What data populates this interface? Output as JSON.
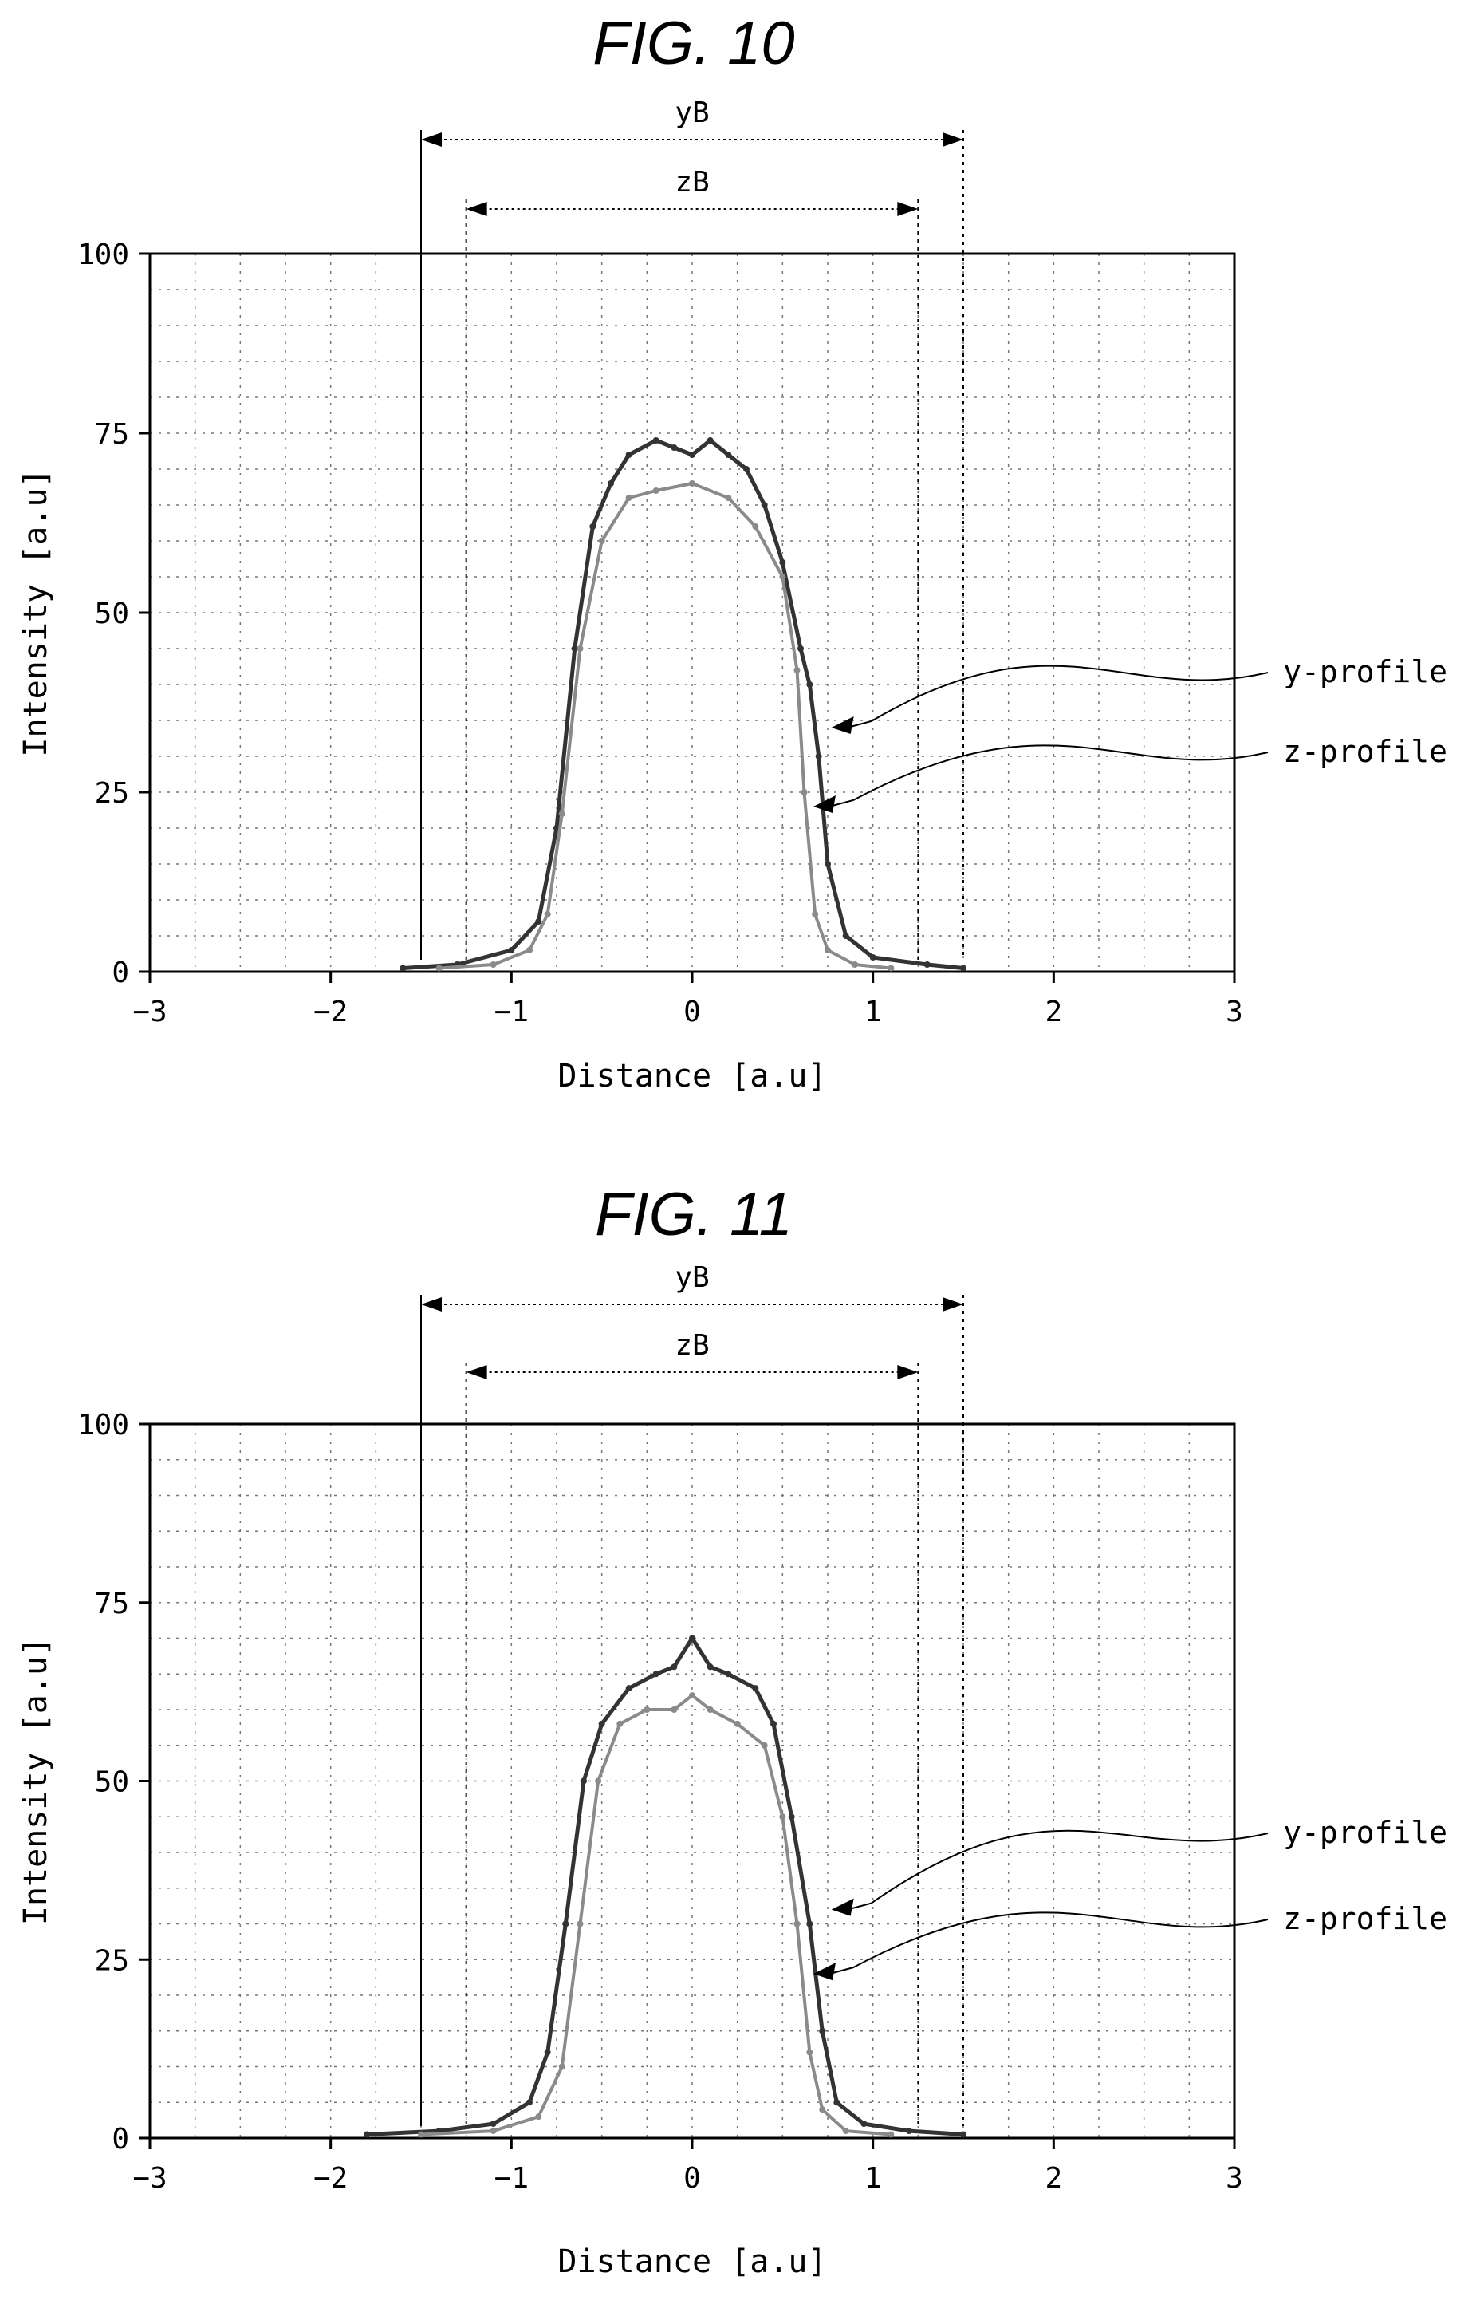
{
  "figures": [
    {
      "title": "FIG. 10",
      "dimensions": {
        "yB_label": "yB",
        "yB_range": [
          -1.5,
          1.5
        ],
        "zB_label": "zB",
        "zB_range": [
          -1.25,
          1.25
        ]
      },
      "annotations": [
        {
          "text": "y-profile",
          "points_to": [
            0.7,
            34
          ]
        },
        {
          "text": "z-profile",
          "points_to": [
            0.6,
            23
          ]
        }
      ]
    },
    {
      "title": "FIG. 11",
      "dimensions": {
        "yB_label": "yB",
        "yB_range": [
          -1.5,
          1.5
        ],
        "zB_label": "zB",
        "zB_range": [
          -1.25,
          1.25
        ]
      },
      "annotations": [
        {
          "text": "y-profile",
          "points_to": [
            0.7,
            32
          ]
        },
        {
          "text": "z-profile",
          "points_to": [
            0.6,
            23
          ]
        }
      ]
    }
  ],
  "chart_data": [
    {
      "type": "line",
      "title": "FIG. 10",
      "xlabel": "Distance [a.u]",
      "ylabel": "Intensity [a.u]",
      "xlim": [
        -3,
        3
      ],
      "ylim": [
        0,
        100
      ],
      "xticks": [
        "-3",
        "-2",
        "-1",
        "0",
        "1",
        "2",
        "3"
      ],
      "yticks": [
        "0",
        "25",
        "50",
        "75",
        "100"
      ],
      "grid": true,
      "series": [
        {
          "name": "y-profile",
          "color": "#333333",
          "x": [
            -1.6,
            -1.3,
            -1.0,
            -0.85,
            -0.75,
            -0.65,
            -0.55,
            -0.45,
            -0.35,
            -0.2,
            -0.1,
            0.0,
            0.1,
            0.2,
            0.3,
            0.4,
            0.5,
            0.6,
            0.65,
            0.7,
            0.75,
            0.85,
            1.0,
            1.3,
            1.5
          ],
          "y": [
            0.5,
            1,
            3,
            7,
            20,
            45,
            62,
            68,
            72,
            74,
            73,
            72,
            74,
            72,
            70,
            65,
            57,
            45,
            40,
            30,
            15,
            5,
            2,
            1,
            0.5
          ]
        },
        {
          "name": "z-profile",
          "color": "#8a8a8a",
          "x": [
            -1.4,
            -1.1,
            -0.9,
            -0.8,
            -0.72,
            -0.62,
            -0.5,
            -0.35,
            -0.2,
            0.0,
            0.2,
            0.35,
            0.5,
            0.58,
            0.62,
            0.68,
            0.75,
            0.9,
            1.1
          ],
          "y": [
            0.5,
            1,
            3,
            8,
            22,
            45,
            60,
            66,
            67,
            68,
            66,
            62,
            55,
            42,
            25,
            8,
            3,
            1,
            0.5
          ]
        }
      ]
    },
    {
      "type": "line",
      "title": "FIG. 11",
      "xlabel": "Distance [a.u]",
      "ylabel": "Intensity [a.u]",
      "xlim": [
        -3,
        3
      ],
      "ylim": [
        0,
        100
      ],
      "xticks": [
        "-3",
        "-2",
        "-1",
        "0",
        "1",
        "2",
        "3"
      ],
      "yticks": [
        "0",
        "25",
        "50",
        "75",
        "100"
      ],
      "grid": true,
      "series": [
        {
          "name": "y-profile",
          "color": "#333333",
          "x": [
            -1.8,
            -1.4,
            -1.1,
            -0.9,
            -0.8,
            -0.7,
            -0.6,
            -0.5,
            -0.35,
            -0.2,
            -0.1,
            0.0,
            0.1,
            0.2,
            0.35,
            0.45,
            0.55,
            0.65,
            0.72,
            0.8,
            0.95,
            1.2,
            1.5
          ],
          "y": [
            0.5,
            1,
            2,
            5,
            12,
            30,
            50,
            58,
            63,
            65,
            66,
            70,
            66,
            65,
            63,
            58,
            45,
            30,
            15,
            5,
            2,
            1,
            0.5
          ]
        },
        {
          "name": "z-profile",
          "color": "#8a8a8a",
          "x": [
            -1.5,
            -1.1,
            -0.85,
            -0.72,
            -0.62,
            -0.52,
            -0.4,
            -0.25,
            -0.1,
            0.0,
            0.1,
            0.25,
            0.4,
            0.5,
            0.58,
            0.65,
            0.72,
            0.85,
            1.1
          ],
          "y": [
            0.5,
            1,
            3,
            10,
            30,
            50,
            58,
            60,
            60,
            62,
            60,
            58,
            55,
            45,
            30,
            12,
            4,
            1,
            0.5
          ]
        }
      ]
    }
  ]
}
